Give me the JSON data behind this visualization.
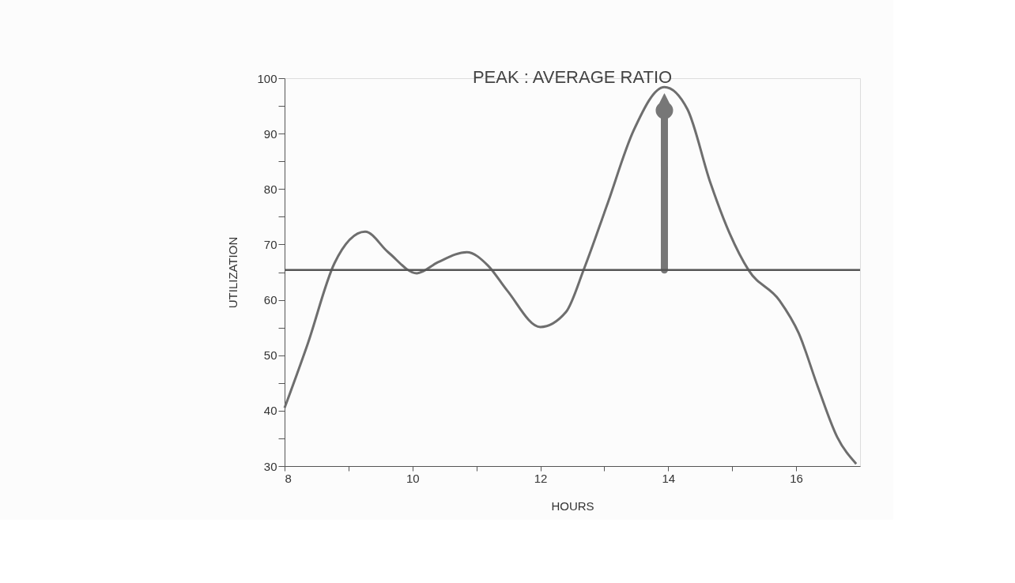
{
  "chart_data": {
    "type": "line",
    "title": "PEAK : AVERAGE RATIO",
    "xlabel": "HOURS",
    "ylabel": "UTILIZATION",
    "x": [
      8,
      8.36,
      8.78,
      9.26,
      9.62,
      10.07,
      10.4,
      10.85,
      11.18,
      11.48,
      12,
      12.4,
      12.68,
      13.04,
      13.46,
      13.94,
      14.3,
      14.66,
      14.96,
      15.26,
      15.74,
      16.04,
      16.34,
      16.64,
      16.94
    ],
    "series": [
      {
        "color": "#6e6e6e",
        "values": [
          40.5,
          52,
          66.6,
          72.3,
          68.6,
          64.8,
          66.8,
          68.6,
          66.2,
          61.7,
          55.1,
          57.8,
          65.5,
          77,
          90.6,
          98.4,
          94.4,
          81.1,
          72,
          65.3,
          59.9,
          54,
          44.3,
          35.3,
          30.4
        ]
      }
    ],
    "xlim": [
      8,
      17
    ],
    "ylim": [
      30,
      100
    ],
    "xticks": [
      8,
      {
        "value": 9,
        "label": null
      },
      10,
      {
        "value": 11,
        "label": null
      },
      12,
      {
        "value": 13,
        "label": null
      },
      14,
      {
        "value": 15,
        "label": null
      },
      16
    ],
    "yticks": [
      30,
      {
        "value": 35,
        "label": null
      },
      40,
      {
        "value": 45,
        "label": null
      },
      50,
      {
        "value": 55,
        "label": null
      },
      60,
      {
        "value": 65,
        "label": null
      },
      70,
      {
        "value": 75,
        "label": null
      },
      80,
      {
        "value": 85,
        "label": null
      },
      90,
      {
        "value": 95,
        "label": null
      },
      100
    ],
    "ref_lines": [
      {
        "axis": "y",
        "value": 65.4,
        "color": "#555555"
      }
    ],
    "grid": false,
    "marker": "none",
    "line_style": "solid"
  }
}
